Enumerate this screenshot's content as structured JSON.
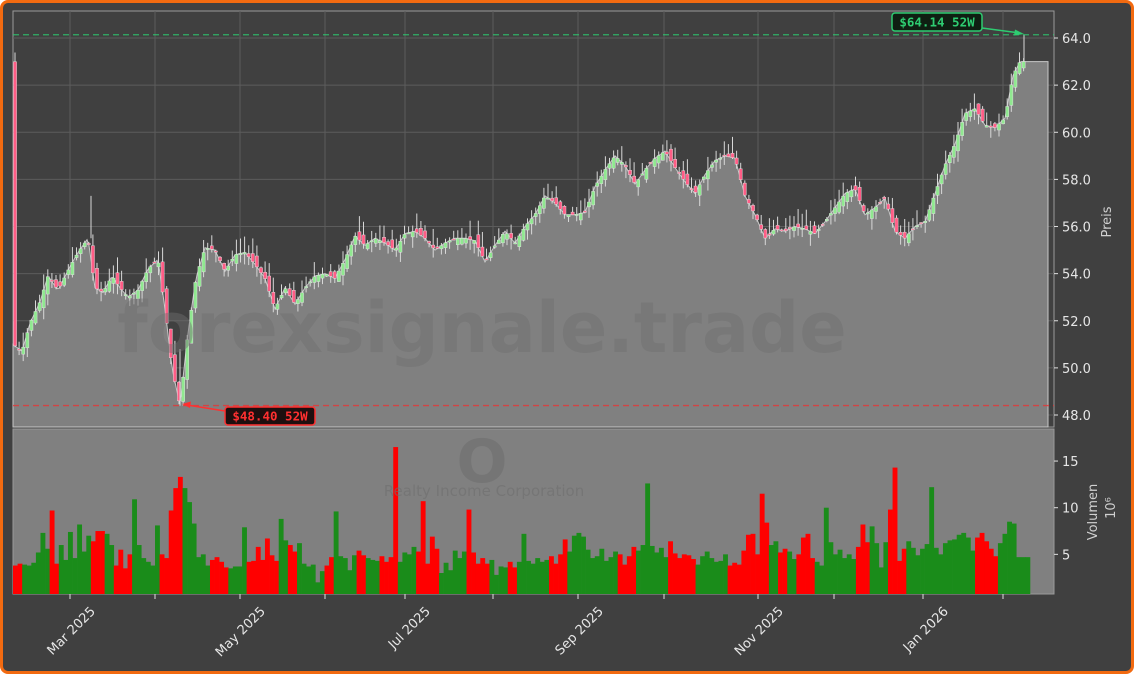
{
  "chart_data": [
    {
      "type": "candlestick",
      "title": "",
      "watermark": "forexsignale.trade",
      "symbol": "O",
      "company": "Realty Income Corporation",
      "ylabel": "Preis",
      "ylim": [
        47.4,
        65.1
      ],
      "yticks": [
        48.0,
        50.0,
        52.0,
        54.0,
        56.0,
        58.0,
        60.0,
        62.0,
        64.0
      ],
      "xticks": [
        "Mar 2025",
        "May 2025",
        "Jul 2025",
        "Sep 2025",
        "Nov 2025",
        "Jan 2026"
      ],
      "grid": true,
      "high_52w": {
        "value": 64.14,
        "label": "$64.14 52W",
        "color": "#2ecc71"
      },
      "low_52w": {
        "value": 48.4,
        "label": "$48.40 52W",
        "color": "#ff3030"
      },
      "close_anchors": [
        [
          13,
          51.0
        ],
        [
          22,
          50.7
        ],
        [
          30,
          51.9
        ],
        [
          40,
          52.8
        ],
        [
          48,
          53.9
        ],
        [
          58,
          53.3
        ],
        [
          70,
          54.3
        ],
        [
          78,
          54.9
        ],
        [
          88,
          55.5
        ],
        [
          95,
          53.4
        ],
        [
          103,
          53.2
        ],
        [
          112,
          53.9
        ],
        [
          120,
          53.4
        ],
        [
          128,
          53.0
        ],
        [
          138,
          53.3
        ],
        [
          148,
          54.2
        ],
        [
          158,
          54.6
        ],
        [
          165,
          52.5
        ],
        [
          172,
          50.0
        ],
        [
          180,
          48.4
        ],
        [
          188,
          51.5
        ],
        [
          196,
          53.8
        ],
        [
          205,
          55.1
        ],
        [
          215,
          55.0
        ],
        [
          225,
          54.1
        ],
        [
          235,
          54.8
        ],
        [
          245,
          54.9
        ],
        [
          255,
          54.4
        ],
        [
          265,
          53.8
        ],
        [
          275,
          52.5
        ],
        [
          285,
          53.4
        ],
        [
          295,
          52.7
        ],
        [
          305,
          53.4
        ],
        [
          315,
          53.9
        ],
        [
          325,
          54.0
        ],
        [
          335,
          53.8
        ],
        [
          345,
          54.6
        ],
        [
          355,
          55.6
        ],
        [
          365,
          55.2
        ],
        [
          375,
          55.5
        ],
        [
          385,
          55.3
        ],
        [
          395,
          55.0
        ],
        [
          405,
          55.7
        ],
        [
          415,
          55.8
        ],
        [
          425,
          55.5
        ],
        [
          435,
          55.0
        ],
        [
          445,
          55.3
        ],
        [
          455,
          55.5
        ],
        [
          465,
          55.5
        ],
        [
          475,
          55.4
        ],
        [
          485,
          54.5
        ],
        [
          495,
          55.2
        ],
        [
          505,
          55.8
        ],
        [
          515,
          55.3
        ],
        [
          525,
          56.0
        ],
        [
          535,
          56.5
        ],
        [
          545,
          57.3
        ],
        [
          555,
          57.0
        ],
        [
          565,
          56.5
        ],
        [
          575,
          56.5
        ],
        [
          585,
          56.6
        ],
        [
          595,
          57.7
        ],
        [
          605,
          58.4
        ],
        [
          615,
          59.0
        ],
        [
          625,
          58.6
        ],
        [
          635,
          57.8
        ],
        [
          645,
          58.4
        ],
        [
          655,
          58.9
        ],
        [
          665,
          59.2
        ],
        [
          675,
          58.5
        ],
        [
          685,
          57.9
        ],
        [
          695,
          57.4
        ],
        [
          705,
          58.2
        ],
        [
          715,
          58.8
        ],
        [
          725,
          59.0
        ],
        [
          735,
          58.9
        ],
        [
          745,
          57.3
        ],
        [
          755,
          56.5
        ],
        [
          765,
          55.5
        ],
        [
          775,
          55.9
        ],
        [
          785,
          55.8
        ],
        [
          795,
          56.0
        ],
        [
          805,
          55.9
        ],
        [
          815,
          55.7
        ],
        [
          825,
          56.2
        ],
        [
          835,
          56.8
        ],
        [
          845,
          57.4
        ],
        [
          855,
          57.6
        ],
        [
          865,
          56.5
        ],
        [
          875,
          56.8
        ],
        [
          885,
          57.2
        ],
        [
          895,
          55.8
        ],
        [
          905,
          55.5
        ],
        [
          915,
          56.0
        ],
        [
          925,
          56.2
        ],
        [
          935,
          57.4
        ],
        [
          945,
          58.6
        ],
        [
          955,
          59.5
        ],
        [
          965,
          60.8
        ],
        [
          975,
          61.0
        ],
        [
          985,
          60.3
        ],
        [
          995,
          60.2
        ],
        [
          1005,
          60.6
        ],
        [
          1013,
          62.4
        ],
        [
          1020,
          63.0
        ],
        [
          1028,
          63.0
        ]
      ]
    },
    {
      "type": "bar",
      "ylabel": "Volumen",
      "yunit": "10^6",
      "yticks": [
        5,
        10,
        15
      ],
      "colors": {
        "up": "#1a8c1a",
        "down": "#ff0000"
      },
      "volumes_millions": [
        3.8,
        4.0,
        3.9,
        3.8,
        4.1,
        5.2,
        7.3,
        5.6,
        9.7,
        4.0,
        6.0,
        4.4,
        7.4,
        4.6,
        8.2,
        5.3,
        7.0,
        6.4,
        7.5,
        7.5,
        7.2,
        6.0,
        3.8,
        5.5,
        3.5,
        5.0,
        10.9,
        6.0,
        4.6,
        4.2,
        3.8,
        8.1,
        5.0,
        4.6,
        9.7,
        12.1,
        13.3,
        12.1,
        10.6,
        8.3,
        4.7,
        5.0,
        3.8,
        4.4,
        4.7,
        4.2,
        3.6,
        3.5,
        3.7,
        3.7,
        7.9,
        4.2,
        4.3,
        5.8,
        4.4,
        6.7,
        4.9,
        4.3,
        8.8,
        6.5,
        6.0,
        5.3,
        6.2,
        4.0,
        3.7,
        3.9,
        2.0,
        3.2,
        3.8,
        4.7,
        9.6,
        4.8,
        4.6,
        3.3,
        4.9,
        5.4,
        4.9,
        4.6,
        4.4,
        4.3,
        4.8,
        4.2,
        4.7,
        16.5,
        4.2,
        5.2,
        5.0,
        5.8,
        5.3,
        10.7,
        4.0,
        6.9,
        5.6,
        3.0,
        4.1,
        3.3,
        5.4,
        4.6,
        5.3,
        9.8,
        5.2,
        4.0,
        4.6,
        4.0,
        4.4,
        2.8,
        3.7,
        3.6,
        4.2,
        3.6,
        4.2,
        7.2,
        4.3,
        4.0,
        4.6,
        4.2,
        4.4,
        4.8,
        4.0,
        5.0,
        6.6,
        5.3,
        7.0,
        7.3,
        6.9,
        5.5,
        4.6,
        4.8,
        5.6,
        4.3,
        4.7,
        5.3,
        5.0,
        3.9,
        4.8,
        5.8,
        5.4,
        6.0,
        12.6,
        5.9,
        5.2,
        5.7,
        4.7,
        6.4,
        5.1,
        4.6,
        5.0,
        4.9,
        4.5,
        3.9,
        4.8,
        5.3,
        4.6,
        4.2,
        4.3,
        5.0,
        3.8,
        4.1,
        3.9,
        5.4,
        7.1,
        7.2,
        5.0,
        11.5,
        8.4,
        6.0,
        6.4,
        5.2,
        5.6,
        5.3,
        4.5,
        5.0,
        6.8,
        7.2,
        4.6,
        4.2,
        3.8,
        10.0,
        6.3,
        5.0,
        5.5,
        4.6,
        5.0,
        4.5,
        5.8,
        8.2,
        6.3,
        8.0,
        6.2,
        3.6,
        6.3,
        9.8,
        14.3,
        4.3,
        5.6,
        6.4,
        5.7,
        4.9,
        5.6,
        6.1,
        12.2,
        5.7,
        5.0,
        6.2,
        6.5,
        6.6,
        7.1,
        7.3,
        6.8,
        5.4,
        6.8,
        7.3,
        6.4,
        5.6,
        4.8,
        6.2,
        7.2,
        8.5,
        8.3,
        4.7,
        4.7,
        4.7
      ]
    }
  ],
  "panels": {
    "price_axis_title": "Preis",
    "volume_axis_title": "Volumen",
    "volume_axis_multiplier": "10⁶"
  }
}
